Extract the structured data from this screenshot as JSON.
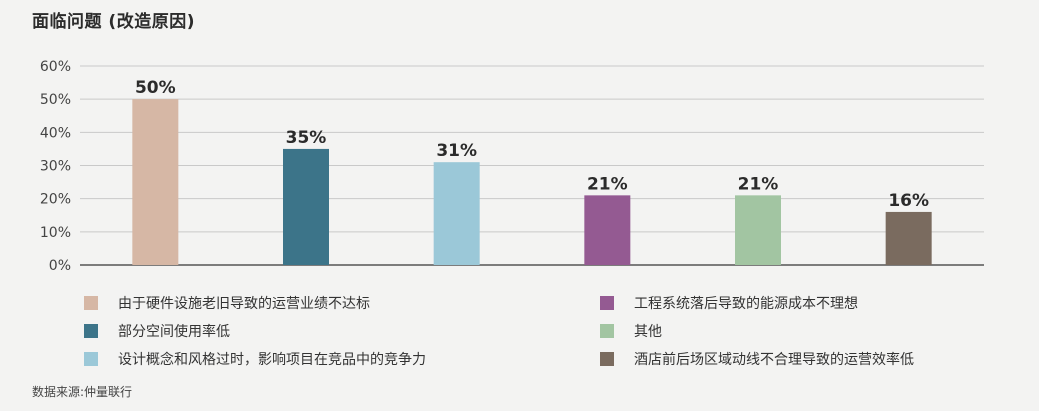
{
  "title": "面临问题 (改造原因)",
  "source": "数据来源:仲量联行",
  "chart_data": {
    "type": "bar",
    "title": "面临问题 (改造原因)",
    "xlabel": "",
    "ylabel": "",
    "ylim": [
      0,
      60
    ],
    "yticks": [
      "0%",
      "10%",
      "20%",
      "30%",
      "40%",
      "50%",
      "60%"
    ],
    "grid": true,
    "legend_position": "bottom",
    "categories": [
      "由于硬件设施老旧导致的运营业绩不达标",
      "部分空间使用率低",
      "设计概念和风格过时，影响项目在竞品中的竞争力",
      "工程系统落后导致的能源成本不理想",
      "其他",
      "酒店前后场区域动线不合理导致的运营效率低"
    ],
    "values": [
      50,
      35,
      31,
      21,
      21,
      16
    ],
    "value_labels": [
      "50%",
      "35%",
      "31%",
      "21%",
      "21%",
      "16%"
    ],
    "colors": [
      "#d6b7a5",
      "#3c7489",
      "#9bc8d8",
      "#945a92",
      "#a2c5a2",
      "#7a6b5f"
    ]
  }
}
